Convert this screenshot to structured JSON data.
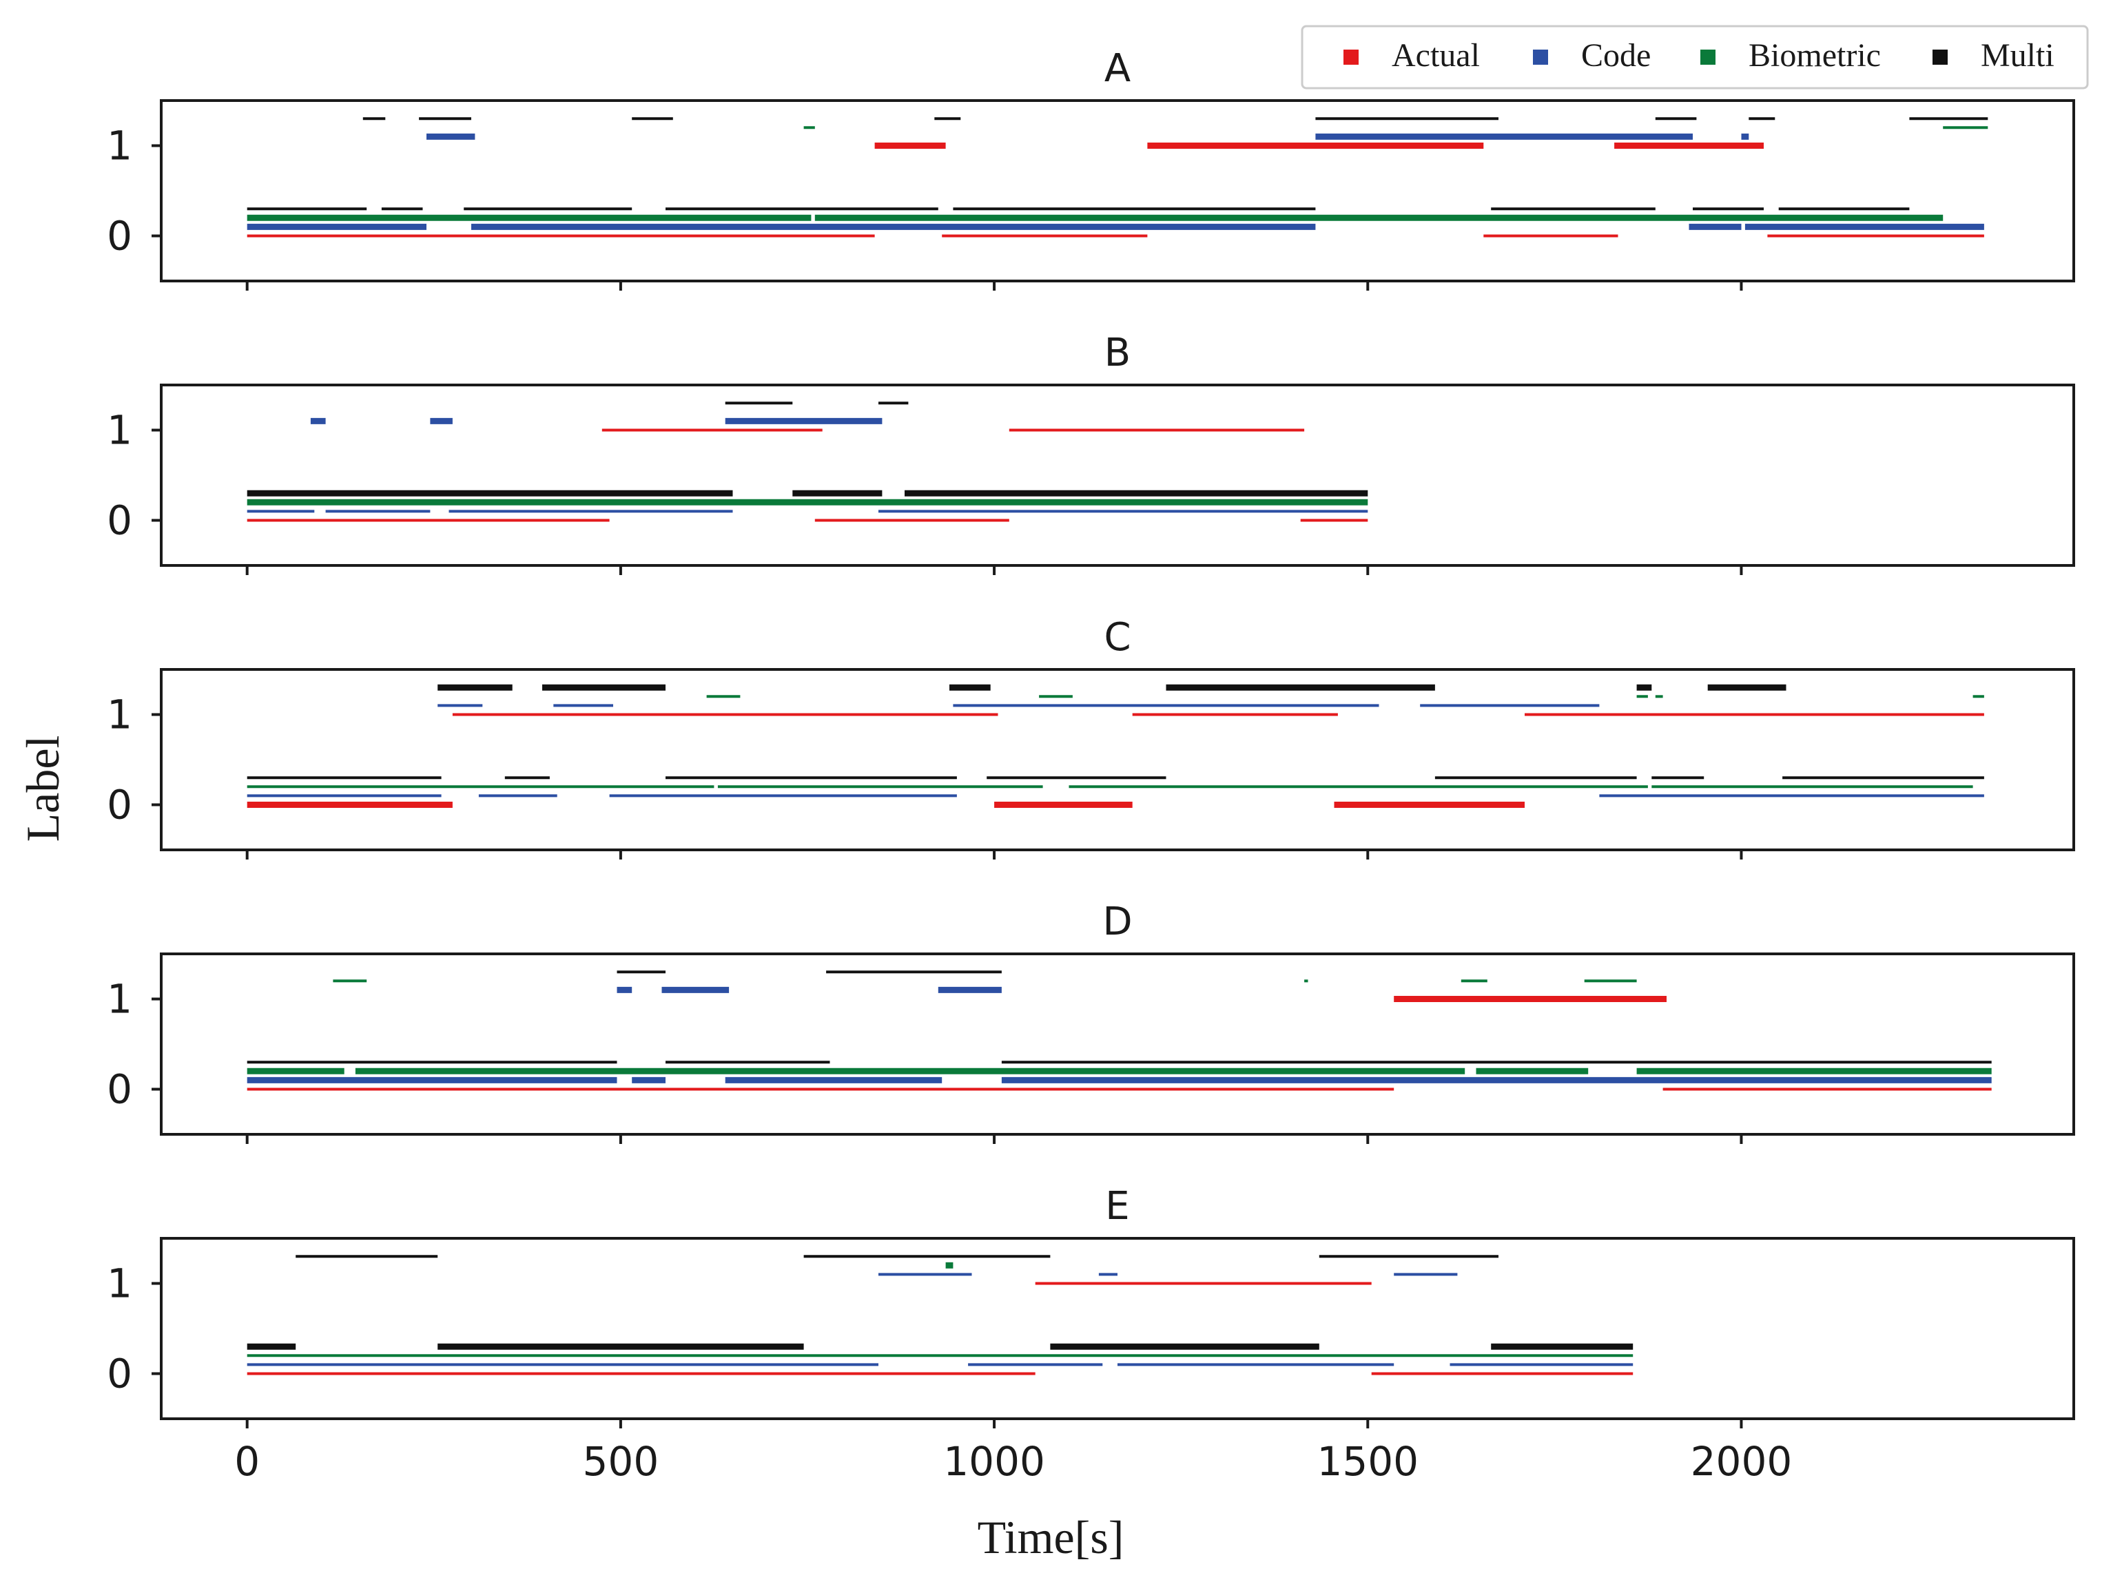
{
  "chart_data": {
    "type": "segment-timeline",
    "xlabel": "Time[s]",
    "ylabel": "Label",
    "xlim": [
      -115,
      2445
    ],
    "ylim": [
      -0.5,
      1.5
    ],
    "xticks": [
      0,
      500,
      1000,
      1500,
      2000
    ],
    "yticks": [
      0,
      1
    ],
    "legend": {
      "position": "top-right",
      "entries": [
        {
          "name": "Actual",
          "color": "#e31a1c"
        },
        {
          "name": "Code",
          "color": "#2c4fa3"
        },
        {
          "name": "Biometric",
          "color": "#0a7a3a"
        },
        {
          "name": "Multi",
          "color": "#111111"
        }
      ]
    },
    "series_offsets": {
      "Actual": 0.0,
      "Code": 0.1,
      "Biometric": 0.2,
      "Multi": 0.3
    },
    "panels": [
      {
        "title": "A",
        "series": {
          "Actual": {
            "thin": [
              [
                0,
                840,
                0
              ],
              [
                930,
                1205,
                0
              ],
              [
                1655,
                1835,
                0
              ],
              [
                2035,
                2325,
                0
              ]
            ],
            "thick": [
              [
                840,
                935,
                1
              ],
              [
                1205,
                1655,
                1
              ],
              [
                1830,
                2030,
                1
              ]
            ]
          },
          "Code": {
            "thin": [],
            "thick": [
              [
                0,
                240,
                0
              ],
              [
                300,
                1430,
                0
              ],
              [
                1930,
                2000,
                0
              ],
              [
                2005,
                2325,
                0
              ],
              [
                240,
                305,
                1
              ],
              [
                1430,
                1935,
                1
              ],
              [
                2000,
                2010,
                1
              ]
            ]
          },
          "Biometric": {
            "thin": [
              [
                745,
                760,
                1
              ],
              [
                2270,
                2330,
                1
              ]
            ],
            "thick": [
              [
                0,
                755,
                0
              ],
              [
                760,
                2270,
                0
              ]
            ]
          },
          "Multi": {
            "thin": [
              [
                0,
                160,
                0
              ],
              [
                180,
                235,
                0
              ],
              [
                290,
                515,
                0
              ],
              [
                560,
                925,
                0
              ],
              [
                945,
                1430,
                0
              ],
              [
                1665,
                1885,
                0
              ],
              [
                1935,
                2030,
                0
              ],
              [
                2050,
                2225,
                0
              ],
              [
                155,
                185,
                1
              ],
              [
                230,
                300,
                1
              ],
              [
                515,
                570,
                1
              ],
              [
                920,
                955,
                1
              ],
              [
                1430,
                1675,
                1
              ],
              [
                1885,
                1940,
                1
              ],
              [
                2010,
                2045,
                1
              ],
              [
                2225,
                2330,
                1
              ]
            ],
            "thick": []
          }
        }
      },
      {
        "title": "B",
        "series": {
          "Actual": {
            "thin": [
              [
                0,
                485,
                0
              ],
              [
                760,
                1020,
                0
              ],
              [
                1410,
                1500,
                0
              ],
              [
                475,
                770,
                1
              ],
              [
                1020,
                1415,
                1
              ]
            ],
            "thick": []
          },
          "Code": {
            "thin": [
              [
                0,
                90,
                0
              ],
              [
                105,
                245,
                0
              ],
              [
                270,
                650,
                0
              ],
              [
                845,
                1500,
                0
              ]
            ],
            "thick": [
              [
                85,
                105,
                1
              ],
              [
                245,
                275,
                1
              ],
              [
                640,
                850,
                1
              ]
            ]
          },
          "Biometric": {
            "thin": [],
            "thick": [
              [
                0,
                1500,
                0
              ]
            ]
          },
          "Multi": {
            "thin": [
              [
                640,
                730,
                1
              ],
              [
                845,
                885,
                1
              ]
            ],
            "thick": [
              [
                0,
                650,
                0
              ],
              [
                730,
                850,
                0
              ],
              [
                880,
                1500,
                0
              ]
            ]
          }
        }
      },
      {
        "title": "C",
        "series": {
          "Actual": {
            "thin": [
              [
                1535,
                1560,
                0
              ],
              [
                275,
                1005,
                1
              ],
              [
                1185,
                1460,
                1
              ],
              [
                1710,
                2325,
                1
              ]
            ],
            "thick": [
              [
                0,
                275,
                0
              ],
              [
                1000,
                1185,
                0
              ],
              [
                1455,
                1710,
                0
              ]
            ]
          },
          "Code": {
            "thin": [
              [
                0,
                260,
                0
              ],
              [
                310,
                415,
                0
              ],
              [
                485,
                950,
                0
              ],
              [
                1810,
                2325,
                0
              ],
              [
                255,
                315,
                1
              ],
              [
                410,
                490,
                1
              ],
              [
                945,
                1515,
                1
              ],
              [
                1570,
                1810,
                1
              ]
            ],
            "thick": []
          },
          "Biometric": {
            "thin": [
              [
                0,
                625,
                0
              ],
              [
                630,
                1065,
                0
              ],
              [
                1100,
                1875,
                0
              ],
              [
                1880,
                2310,
                0
              ],
              [
                615,
                660,
                1
              ],
              [
                1060,
                1105,
                1
              ],
              [
                1860,
                1875,
                1
              ],
              [
                1885,
                1895,
                1
              ],
              [
                2310,
                2325,
                1
              ]
            ],
            "thick": []
          },
          "Multi": {
            "thin": [
              [
                0,
                260,
                0
              ],
              [
                345,
                405,
                0
              ],
              [
                560,
                950,
                0
              ],
              [
                990,
                1230,
                0
              ],
              [
                1590,
                1860,
                0
              ],
              [
                1880,
                1950,
                0
              ],
              [
                2055,
                2325,
                0
              ]
            ],
            "thick": [
              [
                255,
                355,
                1
              ],
              [
                395,
                560,
                1
              ],
              [
                940,
                995,
                1
              ],
              [
                1230,
                1590,
                1
              ],
              [
                1860,
                1880,
                1
              ],
              [
                1955,
                2060,
                1
              ]
            ]
          }
        }
      },
      {
        "title": "D",
        "series": {
          "Actual": {
            "thin": [
              [
                0,
                1535,
                0
              ],
              [
                1895,
                2335,
                0
              ]
            ],
            "thick": [
              [
                1535,
                1900,
                1
              ]
            ]
          },
          "Code": {
            "thin": [],
            "thick": [
              [
                0,
                495,
                0
              ],
              [
                515,
                560,
                0
              ],
              [
                640,
                930,
                0
              ],
              [
                1010,
                2335,
                0
              ],
              [
                495,
                515,
                1
              ],
              [
                555,
                645,
                1
              ],
              [
                925,
                1010,
                1
              ]
            ]
          },
          "Biometric": {
            "thin": [
              [
                115,
                160,
                1
              ],
              [
                1415,
                1420,
                1
              ],
              [
                1625,
                1660,
                1
              ],
              [
                1790,
                1860,
                1
              ]
            ],
            "thick": [
              [
                0,
                130,
                0
              ],
              [
                145,
                1630,
                0
              ],
              [
                1645,
                1795,
                0
              ],
              [
                1860,
                2335,
                0
              ]
            ]
          },
          "Multi": {
            "thin": [
              [
                0,
                495,
                0
              ],
              [
                560,
                780,
                0
              ],
              [
                1010,
                2335,
                0
              ],
              [
                495,
                560,
                1
              ],
              [
                775,
                1010,
                1
              ]
            ],
            "thick": []
          }
        }
      },
      {
        "title": "E",
        "series": {
          "Actual": {
            "thin": [
              [
                0,
                1055,
                0
              ],
              [
                1505,
                1855,
                0
              ],
              [
                1055,
                1505,
                1
              ]
            ],
            "thick": []
          },
          "Code": {
            "thin": [
              [
                0,
                845,
                0
              ],
              [
                965,
                1145,
                0
              ],
              [
                1165,
                1535,
                0
              ],
              [
                1610,
                1855,
                0
              ],
              [
                845,
                970,
                1
              ],
              [
                1140,
                1165,
                1
              ],
              [
                1535,
                1620,
                1
              ]
            ],
            "thick": []
          },
          "Biometric": {
            "thin": [
              [
                0,
                1855,
                0
              ]
            ],
            "thick": [
              [
                935,
                945,
                1
              ]
            ]
          },
          "Multi": {
            "thin": [
              [
                65,
                255,
                1
              ],
              [
                745,
                1075,
                1
              ],
              [
                1435,
                1675,
                1
              ]
            ],
            "thick": [
              [
                0,
                65,
                0
              ],
              [
                255,
                745,
                0
              ],
              [
                1075,
                1435,
                0
              ],
              [
                1665,
                1855,
                0
              ]
            ]
          }
        }
      }
    ]
  }
}
